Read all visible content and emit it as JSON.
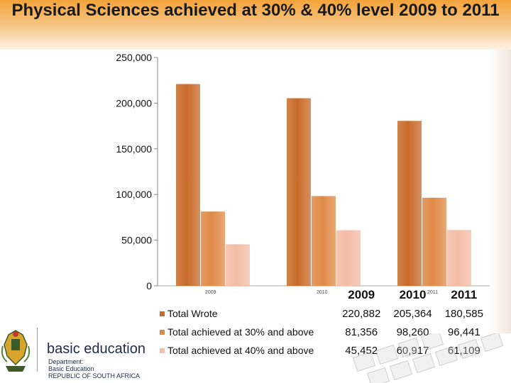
{
  "title": "Physical Sciences achieved at 30% & 40% level 2009 to 2011",
  "chart_data": {
    "type": "bar",
    "categories": [
      "2009",
      "2010",
      "2011"
    ],
    "series": [
      {
        "name": "Total Wrote",
        "values": [
          220882,
          205364,
          180585
        ],
        "labels": [
          "220,882",
          "205,364",
          "180,585"
        ],
        "color": "#c86b2a"
      },
      {
        "name": "Total achieved at 30% and above",
        "values": [
          81356,
          98260,
          96441
        ],
        "labels": [
          "81,356",
          "98,260",
          "96,441"
        ],
        "color": "#e08a48"
      },
      {
        "name": "Total achieved at 40% and above",
        "values": [
          45452,
          60917,
          61109
        ],
        "labels": [
          "45,452",
          "60,917",
          "61,109"
        ],
        "color": "#f3bda6"
      }
    ],
    "ylim": [
      0,
      250000
    ],
    "y_ticks": [
      0,
      50000,
      100000,
      150000,
      200000,
      250000
    ],
    "y_tick_labels": [
      "0",
      "50,000",
      "100,000",
      "150,000",
      "200,000",
      "250,000"
    ],
    "grid": false,
    "legend": "data table below chart",
    "small_tick_labels": [
      "2009",
      "2010",
      "2011"
    ]
  },
  "logo": {
    "name": "basic education",
    "lines": [
      "Department:",
      "Basic Education",
      "REPUBLIC OF SOUTH AFRICA"
    ]
  }
}
